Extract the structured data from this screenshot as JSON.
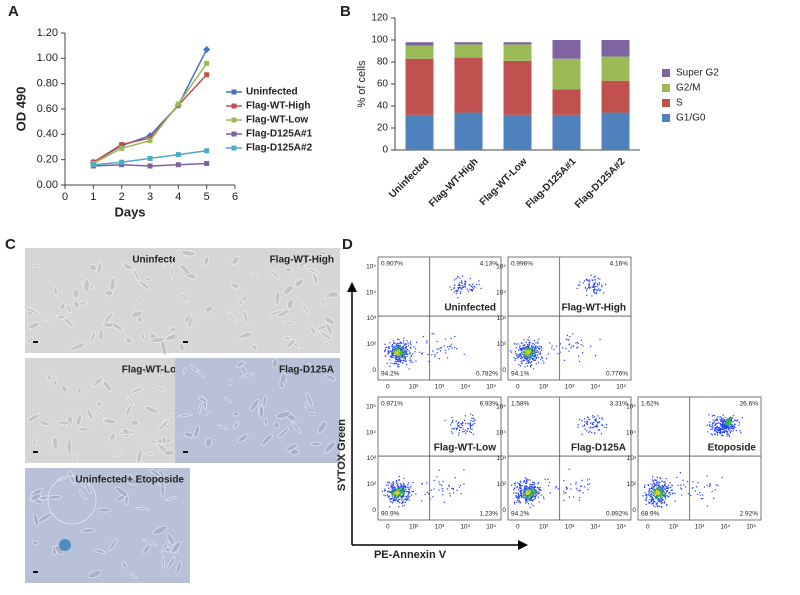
{
  "chart_data": [
    {
      "type": "line",
      "panel_label": "A",
      "x_label": "Days",
      "y_label": "OD 490",
      "x": [
        1,
        2,
        3,
        4,
        5
      ],
      "xlim": [
        0,
        6
      ],
      "xticks": [
        0,
        1,
        2,
        3,
        4,
        5,
        6
      ],
      "ylim": [
        0,
        1.2
      ],
      "yticks": [
        {
          "value": 0,
          "label": "0.00"
        },
        {
          "value": 0.2,
          "label": "0.20"
        },
        {
          "value": 0.4,
          "label": "0.40"
        },
        {
          "value": 0.6,
          "label": "0.60"
        },
        {
          "value": 0.8,
          "label": "0.80"
        },
        {
          "value": 1.0,
          "label": "1.00"
        },
        {
          "value": 1.2,
          "label": "1.20"
        }
      ],
      "series": [
        {
          "name": "Uninfected",
          "color": "#4472c4",
          "values": [
            0.18,
            0.31,
            0.39,
            0.63,
            1.07
          ]
        },
        {
          "name": "Flag-WT-High",
          "color": "#c0504d",
          "values": [
            0.18,
            0.32,
            0.37,
            0.63,
            0.87
          ]
        },
        {
          "name": "Flag-WT-Low",
          "color": "#9bbb59",
          "values": [
            0.17,
            0.29,
            0.35,
            0.64,
            0.96
          ]
        },
        {
          "name": "Flag-D125A#1",
          "color": "#7f60a0",
          "values": [
            0.15,
            0.16,
            0.15,
            0.16,
            0.17
          ]
        },
        {
          "name": "Flag-D125A#2",
          "color": "#4bacc6",
          "values": [
            0.16,
            0.18,
            0.21,
            0.24,
            0.27
          ]
        }
      ]
    },
    {
      "type": "stacked_bar",
      "panel_label": "B",
      "y_label": "% of cells",
      "categories": [
        "Uninfected",
        "Flag-WT-High",
        "Flag-WT-Low",
        "Flag-D125A#1",
        "Flag-D125A#2"
      ],
      "ylim": [
        0,
        120
      ],
      "yticks": [
        0,
        20,
        40,
        60,
        80,
        100,
        120
      ],
      "series": [
        {
          "name": "G1/G0",
          "color": "#4f81bd",
          "values": [
            32,
            34,
            32,
            32,
            34
          ]
        },
        {
          "name": "S",
          "color": "#c0504d",
          "values": [
            51,
            50,
            49,
            23,
            29
          ]
        },
        {
          "name": "G2/M",
          "color": "#9bbb59",
          "values": [
            12,
            12,
            15,
            28,
            22
          ]
        },
        {
          "name": "Super G2",
          "color": "#8064a2",
          "values": [
            3,
            2,
            2,
            17,
            15
          ]
        }
      ]
    }
  ],
  "micrographs": {
    "panel_label": "C",
    "images": [
      {
        "label": "Uninfected"
      },
      {
        "label": "Flag-WT-High"
      },
      {
        "label": "Flag-WT-Low"
      },
      {
        "label": "Flag-D125A"
      },
      {
        "label": "Uninfected+ Etoposide"
      }
    ]
  },
  "flow_cytometry": {
    "panel_label": "D",
    "y_axis_label": "SYTOX Green",
    "x_axis_label": "PE-Annexin V",
    "axis_tick_labels": [
      "0",
      "10²",
      "10³",
      "10⁴",
      "10⁵"
    ],
    "plots": [
      {
        "label": "Uninfected",
        "upper_left": "0.907%",
        "upper_right": "4.13%",
        "lower_left": "94.2%",
        "lower_right": "0.782%"
      },
      {
        "label": "Flag-WT-High",
        "upper_left": "0.996%",
        "upper_right": "4.16%",
        "lower_left": "94.1%",
        "lower_right": "0.776%"
      },
      {
        "label": "Flag-WT-Low",
        "upper_left": "0.971%",
        "upper_right": "6.93%",
        "lower_left": "90.9%",
        "lower_right": "1.23%"
      },
      {
        "label": "Flag-D125A",
        "upper_left": "1.58%",
        "upper_right": "3.31%",
        "lower_left": "94.2%",
        "lower_right": "0.892%"
      },
      {
        "label": "Etoposide",
        "upper_left": "1.62%",
        "upper_right": "26.6%",
        "lower_left": "68.9%",
        "lower_right": "2.92%"
      }
    ]
  }
}
